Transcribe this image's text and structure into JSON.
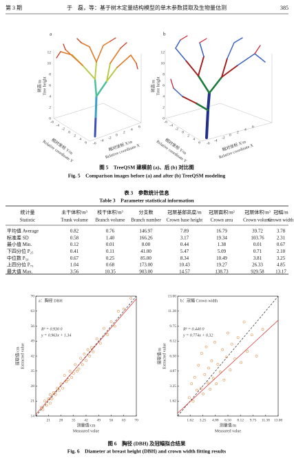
{
  "header": {
    "issue": "第 3 期",
    "title": "于　磊，等：基于树木定量结构模型的单木参数提取及生物量估测",
    "page": "385"
  },
  "figure5": {
    "panels": [
      "a",
      "b"
    ],
    "z_label_cn": "树高/m",
    "z_label_en": "Tree height",
    "y_label_cn": "相对坐标 Y/m",
    "y_label_en": "Relative coordinate Y",
    "x_label_cn": "相对坐标 X/m",
    "x_label_en": "Relative coordinate X",
    "zticks": [
      "0",
      "2",
      "4",
      "6",
      "8",
      "10",
      "12"
    ],
    "hticks": [
      "-6",
      "-4",
      "-2",
      "0",
      "2",
      "4",
      "6"
    ],
    "caption_cn": "图 5　TreeQSM 建模前 (a)、后 (b) 对比图",
    "caption_en": "Fig. 5　Comparison images before (a) and after (b) TreeQSM modeling"
  },
  "table3": {
    "title_cn": "表 3　参数统计信息",
    "title_en": "Table 3　Parameter statistical information",
    "columns": [
      [
        "统计量",
        "Statistic"
      ],
      [
        "主干体积/m³",
        "Trunk volume"
      ],
      [
        "枝干体积/m³",
        "Branch volume"
      ],
      [
        "分支数",
        "Branch number"
      ],
      [
        "冠层基部高度/m",
        "Crown base height"
      ],
      [
        "冠层面积/m²",
        "Crown area"
      ],
      [
        "冠层体积/m³",
        "Crown volume"
      ],
      [
        "冠幅/m",
        "Crown width"
      ]
    ],
    "rows": [
      [
        "平均值 Average",
        "0.82",
        "0.76",
        "146.97",
        "7.89",
        "16.79",
        "39.72",
        "3.78"
      ],
      [
        "标准差 SD",
        "0.58",
        "1.40",
        "166.26",
        "3.17",
        "19.34",
        "103.76",
        "2.31"
      ],
      [
        "最小值 Min.",
        "0.12",
        "0.01",
        "8.00",
        "0.44",
        "1.38",
        "0.01",
        "0.67"
      ],
      [
        "下四分位 P₂₅",
        "0.41",
        "0.11",
        "41.00",
        "5.47",
        "5.09",
        "0.71",
        "2.10"
      ],
      [
        "中位数 P₅₀",
        "0.67",
        "0.25",
        "85.00",
        "8.34",
        "10.49",
        "3.81",
        "3.25"
      ],
      [
        "上四分位 P₇₅",
        "1.04",
        "0.68",
        "173.00",
        "10.43",
        "19.27",
        "26.33",
        "4.85"
      ],
      [
        "最大值 Max.",
        "3.56",
        "10.35",
        "903.00",
        "14.57",
        "138.73",
        "929.58",
        "13.17"
      ]
    ]
  },
  "figure6": {
    "chart_data": [
      {
        "type": "scatter",
        "title": "a：胸径 DBH",
        "r2": "R² = 0.930 0",
        "equation": "y = 0.963x + 1.34",
        "fit": {
          "slope": 0.963,
          "intercept": 1.34
        },
        "color": "#e0904a",
        "fit_color": "#d62020",
        "ylabel_cn": "提取值/cm",
        "ylabel_en": "Extracted value",
        "xlabel_cn": "测量值/cm",
        "xlabel_en": "Measured value",
        "xlim": [
          14,
          70
        ],
        "ylim": [
          14,
          70
        ],
        "xticks": [
          21,
          28,
          35,
          42,
          49,
          56,
          63,
          70
        ],
        "yticks": [
          14,
          21,
          28,
          35,
          42,
          49,
          56,
          63,
          70
        ],
        "x": [
          17,
          18,
          19,
          20,
          21,
          22,
          22,
          23,
          24,
          25,
          26,
          27,
          28,
          29,
          30,
          31,
          32,
          33,
          34,
          35,
          36,
          37,
          38,
          39,
          40,
          41,
          42,
          43,
          44,
          45,
          46,
          48,
          50,
          52,
          54,
          56,
          58,
          60,
          63,
          67
        ],
        "values": [
          18,
          17,
          21,
          19,
          22,
          20,
          24,
          22,
          25,
          24,
          27,
          26,
          29,
          27,
          33,
          30,
          31,
          35,
          32,
          34,
          38,
          35,
          36,
          41,
          38,
          43,
          40,
          45,
          42,
          46,
          44,
          50,
          48,
          55,
          52,
          58,
          56,
          63,
          64,
          69
        ]
      },
      {
        "type": "scatter",
        "title": "b：冠幅 Crown width",
        "r2": "R² = 0.440 0",
        "equation": "y = 0.774x + 0.32",
        "fit": {
          "slope": 0.774,
          "intercept": 0.32
        },
        "color": "#e0904a",
        "fit_color": "#d62020",
        "ylabel_cn": "提取值/m",
        "ylabel_en": "Extracted value",
        "xlabel_cn": "测量值/m",
        "xlabel_en": "Measured value",
        "xlim": [
          0,
          13
        ],
        "ylim": [
          0,
          13
        ],
        "xticks": [
          1.62,
          3.25,
          4.88,
          {
            "value": 6.5,
            "label": "6.50"
          },
          8.12,
          9.75,
          11.38,
          {
            "value": 13,
            "label": "13.00"
          }
        ],
        "yticks": [
          1.62,
          3.25,
          4.87,
          {
            "value": 6.5,
            "label": "6.50"
          },
          8.12,
          9.75,
          11.38,
          {
            "value": 13,
            "label": "13.00"
          }
        ],
        "x": [
          1.5,
          1.8,
          2.0,
          2.2,
          2.5,
          2.7,
          3.0,
          3.1,
          3.3,
          3.5,
          3.7,
          3.9,
          4.0,
          4.2,
          4.4,
          4.6,
          4.8,
          5.0,
          5.2,
          5.5,
          5.8,
          6.0,
          6.3,
          6.5,
          6.8,
          7.0,
          7.4,
          7.8,
          8.2,
          8.6,
          9.0,
          9.6,
          10.2,
          11.0
        ],
        "values": [
          2.0,
          3.5,
          1.6,
          4.2,
          2.8,
          5.5,
          3.0,
          6.8,
          2.4,
          4.5,
          7.5,
          3.6,
          5.2,
          2.9,
          6.0,
          4.1,
          8.0,
          3.5,
          5.6,
          4.8,
          7.2,
          3.9,
          6.4,
          9.0,
          5.0,
          7.8,
          6.2,
          8.5,
          5.8,
          10.2,
          7.0,
          8.8,
          6.5,
          9.4
        ]
      }
    ],
    "caption_cn": "图 6　胸径 (DBH) 及冠幅拟合结果",
    "caption_en": "Fig. 6　Diameter at breast height (DBH) and crown width fitting results"
  }
}
